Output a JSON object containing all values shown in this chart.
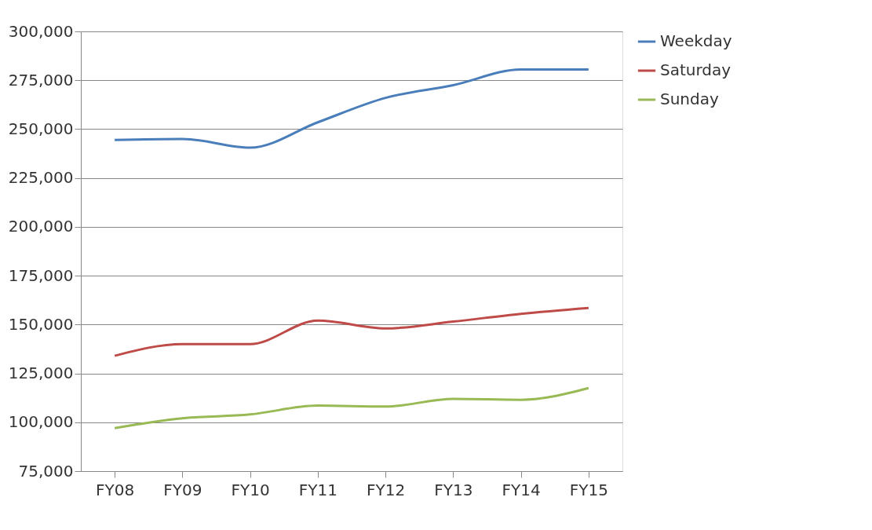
{
  "chart_data": {
    "type": "line",
    "categories": [
      "FY08",
      "FY09",
      "FY10",
      "FY11",
      "FY12",
      "FY13",
      "FY14",
      "FY15"
    ],
    "series": [
      {
        "name": "Weekday",
        "color": "#4a7ebb",
        "values": [
          244500,
          245000,
          240500,
          253500,
          266000,
          272500,
          280500,
          280500
        ]
      },
      {
        "name": "Saturday",
        "color": "#be4b48",
        "values": [
          134000,
          140000,
          140000,
          152000,
          148000,
          151500,
          155500,
          158500
        ]
      },
      {
        "name": "Sunday",
        "color": "#98b954",
        "values": [
          97000,
          102000,
          104000,
          108500,
          108000,
          112000,
          111500,
          117500
        ]
      }
    ],
    "ylim": [
      75000,
      300000
    ],
    "yticks": [
      {
        "value": 75000,
        "label": "75,000"
      },
      {
        "value": 100000,
        "label": "100,000"
      },
      {
        "value": 125000,
        "label": "125,000"
      },
      {
        "value": 150000,
        "label": "150,000"
      },
      {
        "value": 175000,
        "label": "175,000"
      },
      {
        "value": 200000,
        "label": "200,000"
      },
      {
        "value": 225000,
        "label": "225,000"
      },
      {
        "value": 250000,
        "label": "250,000"
      },
      {
        "value": 275000,
        "label": "275,000"
      },
      {
        "value": 300000,
        "label": "300,000"
      }
    ],
    "grid": "y",
    "legend": "right",
    "marker": "none",
    "line_style": "solid"
  }
}
